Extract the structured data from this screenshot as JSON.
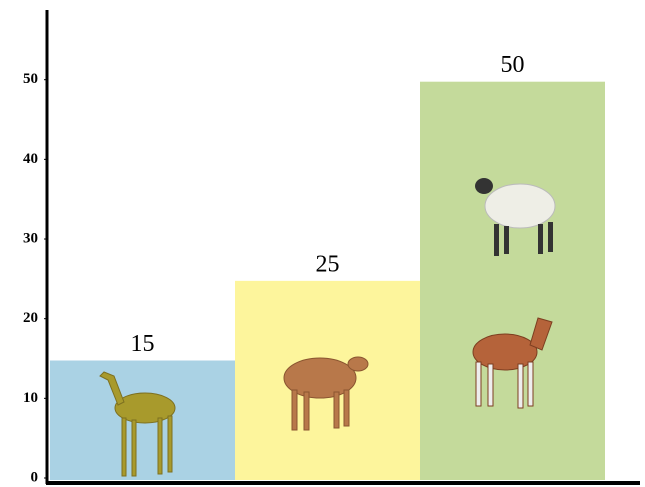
{
  "chart_data": {
    "type": "bar",
    "values": [
      15,
      25,
      50
    ],
    "colors": [
      "#aad2e4",
      "#fdf59c",
      "#c4da9b"
    ],
    "ylim": [
      0,
      59
    ],
    "yticks": [
      0,
      10,
      20,
      30,
      40,
      50
    ]
  }
}
